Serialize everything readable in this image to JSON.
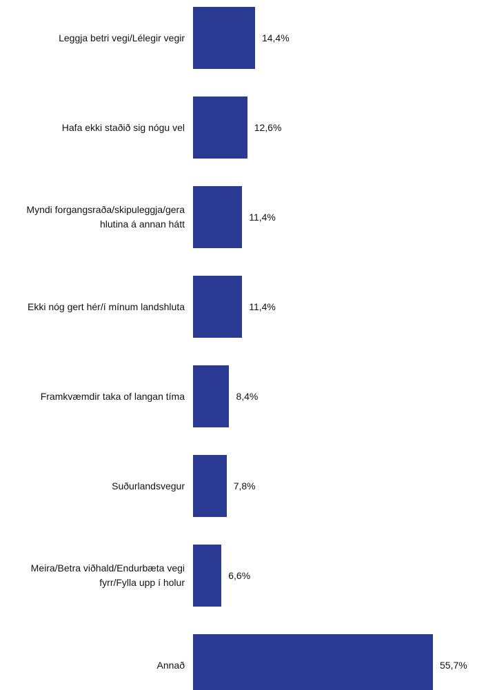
{
  "chart_data": {
    "type": "bar",
    "orientation": "horizontal",
    "categories": [
      "Leggja betri vegi/Lélegir vegir",
      "Hafa ekki staðið sig nógu vel",
      "Myndi forgangsraða/skipuleggja/gera hlutina á annan hátt",
      "Ekki nóg gert hér/í mínum landshluta",
      "Framkvæmdir taka of langan tíma",
      "Suðurlandsvegur",
      "Meira/Betra viðhald/Endurbæta vegi fyrr/Fylla upp í holur",
      "Annað"
    ],
    "values": [
      14.4,
      12.6,
      11.4,
      11.4,
      8.4,
      7.8,
      6.6,
      55.7
    ],
    "value_labels": [
      "14,4%",
      "12,6%",
      "11,4%",
      "11,4%",
      "8,4%",
      "7,8%",
      "6,6%",
      "55,7%"
    ],
    "color": "#2b3a93"
  }
}
